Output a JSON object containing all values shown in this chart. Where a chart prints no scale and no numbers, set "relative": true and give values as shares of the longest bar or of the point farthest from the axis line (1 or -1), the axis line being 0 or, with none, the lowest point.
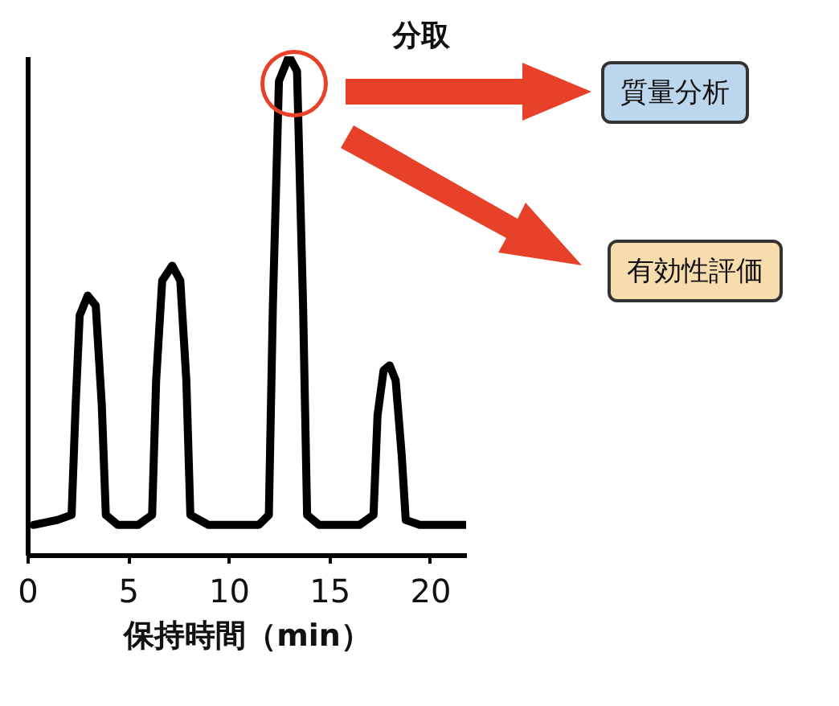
{
  "chart_data": {
    "type": "line",
    "xlabel": "保持時間（min）",
    "relative": true,
    "xlim": [
      0,
      21.8
    ],
    "xticks": [
      0,
      5,
      10,
      15,
      20
    ],
    "x": [
      0.3,
      1.5,
      2.2,
      2.4,
      2.6,
      3.0,
      3.4,
      3.7,
      3.9,
      4.5,
      5.5,
      6.2,
      6.4,
      6.7,
      7.2,
      7.6,
      7.9,
      8.1,
      9,
      11.5,
      12,
      12.2,
      12.5,
      13,
      13.4,
      13.7,
      13.9,
      14.5,
      16.5,
      17.2,
      17.4,
      17.7,
      18,
      18.3,
      18.6,
      18.8,
      19.5,
      21.8
    ],
    "series": [
      {
        "color": "#000000",
        "values": [
          0.06,
          0.07,
          0.08,
          0.3,
          0.48,
          0.52,
          0.5,
          0.3,
          0.08,
          0.06,
          0.06,
          0.08,
          0.35,
          0.55,
          0.58,
          0.55,
          0.35,
          0.08,
          0.06,
          0.06,
          0.08,
          0.5,
          0.95,
          1,
          0.97,
          0.5,
          0.08,
          0.06,
          0.06,
          0.08,
          0.28,
          0.37,
          0.38,
          0.35,
          0.2,
          0.07,
          0.06,
          0.06
        ]
      }
    ],
    "annotations": [
      "分取",
      "質量分析",
      "有効性評価"
    ]
  }
}
